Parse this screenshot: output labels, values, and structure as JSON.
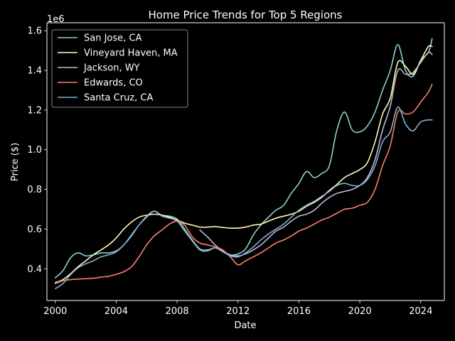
{
  "chart_data": {
    "type": "line",
    "title": "Home Price Trends for Top 5 Regions",
    "xlabel": "Date",
    "ylabel": "Price ($)",
    "y_offset_label": "1e6",
    "xlim": [
      "2000-01-01",
      "2025-01-01"
    ],
    "ylim": [
      240000,
      1640000
    ],
    "x_ticks": [
      {
        "value": "2000-01-01",
        "label": "2000"
      },
      {
        "value": "2004-01-01",
        "label": "2004"
      },
      {
        "value": "2008-01-01",
        "label": "2008"
      },
      {
        "value": "2012-01-01",
        "label": "2012"
      },
      {
        "value": "2016-01-01",
        "label": "2016"
      },
      {
        "value": "2020-01-01",
        "label": "2020"
      },
      {
        "value": "2024-01-01",
        "label": "2024"
      }
    ],
    "y_ticks": [
      {
        "value": 400000,
        "label": "0.4"
      },
      {
        "value": 600000,
        "label": "0.6"
      },
      {
        "value": 800000,
        "label": "0.8"
      },
      {
        "value": 1000000,
        "label": "1.0"
      },
      {
        "value": 1200000,
        "label": "1.2"
      },
      {
        "value": 1400000,
        "label": "1.4"
      },
      {
        "value": 1600000,
        "label": "1.6"
      }
    ],
    "grid": false,
    "legend_position": "top-left",
    "series": [
      {
        "name": "San Jose, CA",
        "color": "#8dd3c7",
        "points": [
          [
            "2000-01-01",
            355000
          ],
          [
            "2000-07-01",
            390000
          ],
          [
            "2001-01-01",
            455000
          ],
          [
            "2001-07-01",
            480000
          ],
          [
            "2002-01-01",
            465000
          ],
          [
            "2002-07-01",
            470000
          ],
          [
            "2003-01-01",
            480000
          ],
          [
            "2003-07-01",
            480000
          ],
          [
            "2004-01-01",
            490000
          ],
          [
            "2004-07-01",
            520000
          ],
          [
            "2005-01-01",
            570000
          ],
          [
            "2005-07-01",
            620000
          ],
          [
            "2006-01-01",
            660000
          ],
          [
            "2006-07-01",
            690000
          ],
          [
            "2007-01-01",
            670000
          ],
          [
            "2007-07-01",
            665000
          ],
          [
            "2008-01-01",
            650000
          ],
          [
            "2008-07-01",
            600000
          ],
          [
            "2009-01-01",
            545000
          ],
          [
            "2009-07-01",
            500000
          ],
          [
            "2010-01-01",
            495000
          ],
          [
            "2010-07-01",
            505000
          ],
          [
            "2011-01-01",
            490000
          ],
          [
            "2011-07-01",
            470000
          ],
          [
            "2012-01-01",
            475000
          ],
          [
            "2012-07-01",
            500000
          ],
          [
            "2013-01-01",
            570000
          ],
          [
            "2013-07-01",
            620000
          ],
          [
            "2014-01-01",
            660000
          ],
          [
            "2014-07-01",
            695000
          ],
          [
            "2015-01-01",
            720000
          ],
          [
            "2015-07-01",
            780000
          ],
          [
            "2016-01-01",
            830000
          ],
          [
            "2016-07-01",
            890000
          ],
          [
            "2017-01-01",
            860000
          ],
          [
            "2017-07-01",
            880000
          ],
          [
            "2018-01-01",
            920000
          ],
          [
            "2018-07-01",
            1100000
          ],
          [
            "2019-01-01",
            1190000
          ],
          [
            "2019-07-01",
            1100000
          ],
          [
            "2020-01-01",
            1090000
          ],
          [
            "2020-07-01",
            1120000
          ],
          [
            "2021-01-01",
            1190000
          ],
          [
            "2021-07-01",
            1300000
          ],
          [
            "2022-01-01",
            1400000
          ],
          [
            "2022-07-01",
            1530000
          ],
          [
            "2023-01-01",
            1400000
          ],
          [
            "2023-07-01",
            1370000
          ],
          [
            "2024-01-01",
            1450000
          ],
          [
            "2024-07-01",
            1490000
          ],
          [
            "2024-10-01",
            1560000
          ]
        ]
      },
      {
        "name": "Vineyard Haven, MA",
        "color": "#ffffb3",
        "points": [
          [
            "2000-01-01",
            330000
          ],
          [
            "2000-07-01",
            345000
          ],
          [
            "2001-01-01",
            375000
          ],
          [
            "2001-07-01",
            410000
          ],
          [
            "2002-01-01",
            440000
          ],
          [
            "2002-07-01",
            470000
          ],
          [
            "2003-01-01",
            495000
          ],
          [
            "2003-07-01",
            520000
          ],
          [
            "2004-01-01",
            555000
          ],
          [
            "2004-07-01",
            600000
          ],
          [
            "2005-01-01",
            635000
          ],
          [
            "2005-07-01",
            660000
          ],
          [
            "2006-01-01",
            670000
          ],
          [
            "2006-07-01",
            675000
          ],
          [
            "2007-01-01",
            670000
          ],
          [
            "2007-07-01",
            660000
          ],
          [
            "2008-01-01",
            645000
          ],
          [
            "2008-07-01",
            630000
          ],
          [
            "2009-01-01",
            620000
          ],
          [
            "2009-07-01",
            610000
          ],
          [
            "2010-01-01",
            610000
          ],
          [
            "2010-07-01",
            612000
          ],
          [
            "2011-01-01",
            608000
          ],
          [
            "2011-07-01",
            605000
          ],
          [
            "2012-01-01",
            605000
          ],
          [
            "2012-07-01",
            610000
          ],
          [
            "2013-01-01",
            620000
          ],
          [
            "2013-07-01",
            625000
          ],
          [
            "2014-01-01",
            640000
          ],
          [
            "2014-07-01",
            655000
          ],
          [
            "2015-01-01",
            665000
          ],
          [
            "2015-07-01",
            675000
          ],
          [
            "2016-01-01",
            690000
          ],
          [
            "2016-07-01",
            715000
          ],
          [
            "2017-01-01",
            735000
          ],
          [
            "2017-07-01",
            760000
          ],
          [
            "2018-01-01",
            795000
          ],
          [
            "2018-07-01",
            825000
          ],
          [
            "2019-01-01",
            860000
          ],
          [
            "2019-07-01",
            880000
          ],
          [
            "2020-01-01",
            900000
          ],
          [
            "2020-07-01",
            935000
          ],
          [
            "2021-01-01",
            1040000
          ],
          [
            "2021-07-01",
            1180000
          ],
          [
            "2022-01-01",
            1260000
          ],
          [
            "2022-07-01",
            1440000
          ],
          [
            "2023-01-01",
            1420000
          ],
          [
            "2023-07-01",
            1380000
          ],
          [
            "2024-01-01",
            1450000
          ],
          [
            "2024-07-01",
            1520000
          ],
          [
            "2024-10-01",
            1520000
          ]
        ]
      },
      {
        "name": "Jackson, WY",
        "color": "#bebada",
        "points": [
          [
            "2009-07-01",
            595000
          ],
          [
            "2010-01-01",
            560000
          ],
          [
            "2010-07-01",
            520000
          ],
          [
            "2011-01-01",
            490000
          ],
          [
            "2011-07-01",
            470000
          ],
          [
            "2012-01-01",
            465000
          ],
          [
            "2012-07-01",
            475000
          ],
          [
            "2013-01-01",
            495000
          ],
          [
            "2013-07-01",
            520000
          ],
          [
            "2014-01-01",
            555000
          ],
          [
            "2014-07-01",
            590000
          ],
          [
            "2015-01-01",
            610000
          ],
          [
            "2015-07-01",
            640000
          ],
          [
            "2016-01-01",
            665000
          ],
          [
            "2016-07-01",
            675000
          ],
          [
            "2017-01-01",
            695000
          ],
          [
            "2017-07-01",
            730000
          ],
          [
            "2018-01-01",
            760000
          ],
          [
            "2018-07-01",
            780000
          ],
          [
            "2019-01-01",
            790000
          ],
          [
            "2019-07-01",
            800000
          ],
          [
            "2020-01-01",
            820000
          ],
          [
            "2020-07-01",
            860000
          ],
          [
            "2021-01-01",
            950000
          ],
          [
            "2021-07-01",
            1100000
          ],
          [
            "2022-01-01",
            1220000
          ],
          [
            "2022-07-01",
            1400000
          ],
          [
            "2023-01-01",
            1380000
          ],
          [
            "2023-07-01",
            1390000
          ],
          [
            "2024-01-01",
            1440000
          ],
          [
            "2024-07-01",
            1490000
          ],
          [
            "2024-10-01",
            1480000
          ]
        ]
      },
      {
        "name": "Edwards, CO",
        "color": "#fb8072",
        "points": [
          [
            "2000-01-01",
            325000
          ],
          [
            "2000-07-01",
            340000
          ],
          [
            "2001-01-01",
            345000
          ],
          [
            "2001-07-01",
            348000
          ],
          [
            "2002-01-01",
            350000
          ],
          [
            "2002-07-01",
            352000
          ],
          [
            "2003-01-01",
            358000
          ],
          [
            "2003-07-01",
            362000
          ],
          [
            "2004-01-01",
            372000
          ],
          [
            "2004-07-01",
            385000
          ],
          [
            "2005-01-01",
            410000
          ],
          [
            "2005-07-01",
            460000
          ],
          [
            "2006-01-01",
            520000
          ],
          [
            "2006-07-01",
            565000
          ],
          [
            "2007-01-01",
            595000
          ],
          [
            "2007-07-01",
            625000
          ],
          [
            "2008-01-01",
            640000
          ],
          [
            "2008-07-01",
            620000
          ],
          [
            "2009-01-01",
            560000
          ],
          [
            "2009-07-01",
            530000
          ],
          [
            "2010-01-01",
            520000
          ],
          [
            "2010-07-01",
            510000
          ],
          [
            "2011-01-01",
            495000
          ],
          [
            "2011-07-01",
            460000
          ],
          [
            "2012-01-01",
            420000
          ],
          [
            "2012-07-01",
            440000
          ],
          [
            "2013-01-01",
            460000
          ],
          [
            "2013-07-01",
            480000
          ],
          [
            "2014-01-01",
            505000
          ],
          [
            "2014-07-01",
            530000
          ],
          [
            "2015-01-01",
            545000
          ],
          [
            "2015-07-01",
            565000
          ],
          [
            "2016-01-01",
            590000
          ],
          [
            "2016-07-01",
            605000
          ],
          [
            "2017-01-01",
            625000
          ],
          [
            "2017-07-01",
            645000
          ],
          [
            "2018-01-01",
            660000
          ],
          [
            "2018-07-01",
            680000
          ],
          [
            "2019-01-01",
            700000
          ],
          [
            "2019-07-01",
            705000
          ],
          [
            "2020-01-01",
            720000
          ],
          [
            "2020-07-01",
            735000
          ],
          [
            "2021-01-01",
            800000
          ],
          [
            "2021-07-01",
            920000
          ],
          [
            "2022-01-01",
            1020000
          ],
          [
            "2022-07-01",
            1190000
          ],
          [
            "2023-01-01",
            1180000
          ],
          [
            "2023-07-01",
            1190000
          ],
          [
            "2024-01-01",
            1240000
          ],
          [
            "2024-07-01",
            1290000
          ],
          [
            "2024-10-01",
            1330000
          ]
        ]
      },
      {
        "name": "Santa Cruz, CA",
        "color": "#80b1d3",
        "points": [
          [
            "2000-01-01",
            300000
          ],
          [
            "2000-07-01",
            325000
          ],
          [
            "2001-01-01",
            370000
          ],
          [
            "2001-07-01",
            405000
          ],
          [
            "2002-01-01",
            425000
          ],
          [
            "2002-07-01",
            440000
          ],
          [
            "2003-01-01",
            460000
          ],
          [
            "2003-07-01",
            470000
          ],
          [
            "2004-01-01",
            485000
          ],
          [
            "2004-07-01",
            520000
          ],
          [
            "2005-01-01",
            565000
          ],
          [
            "2005-07-01",
            620000
          ],
          [
            "2006-01-01",
            665000
          ],
          [
            "2006-07-01",
            690000
          ],
          [
            "2007-01-01",
            665000
          ],
          [
            "2007-07-01",
            655000
          ],
          [
            "2008-01-01",
            640000
          ],
          [
            "2008-07-01",
            590000
          ],
          [
            "2009-01-01",
            540000
          ],
          [
            "2009-07-01",
            495000
          ],
          [
            "2010-01-01",
            490000
          ],
          [
            "2010-07-01",
            505000
          ],
          [
            "2011-01-01",
            485000
          ],
          [
            "2011-07-01",
            465000
          ],
          [
            "2012-01-01",
            460000
          ],
          [
            "2012-07-01",
            480000
          ],
          [
            "2013-01-01",
            510000
          ],
          [
            "2013-07-01",
            545000
          ],
          [
            "2014-01-01",
            575000
          ],
          [
            "2014-07-01",
            600000
          ],
          [
            "2015-01-01",
            625000
          ],
          [
            "2015-07-01",
            660000
          ],
          [
            "2016-01-01",
            695000
          ],
          [
            "2016-07-01",
            720000
          ],
          [
            "2017-01-01",
            740000
          ],
          [
            "2017-07-01",
            765000
          ],
          [
            "2018-01-01",
            790000
          ],
          [
            "2018-07-01",
            820000
          ],
          [
            "2019-01-01",
            830000
          ],
          [
            "2019-07-01",
            820000
          ],
          [
            "2020-01-01",
            820000
          ],
          [
            "2020-07-01",
            850000
          ],
          [
            "2021-01-01",
            920000
          ],
          [
            "2021-07-01",
            1040000
          ],
          [
            "2022-01-01",
            1090000
          ],
          [
            "2022-07-01",
            1215000
          ],
          [
            "2023-01-01",
            1130000
          ],
          [
            "2023-07-01",
            1095000
          ],
          [
            "2024-01-01",
            1140000
          ],
          [
            "2024-07-01",
            1150000
          ],
          [
            "2024-10-01",
            1150000
          ]
        ]
      }
    ]
  }
}
